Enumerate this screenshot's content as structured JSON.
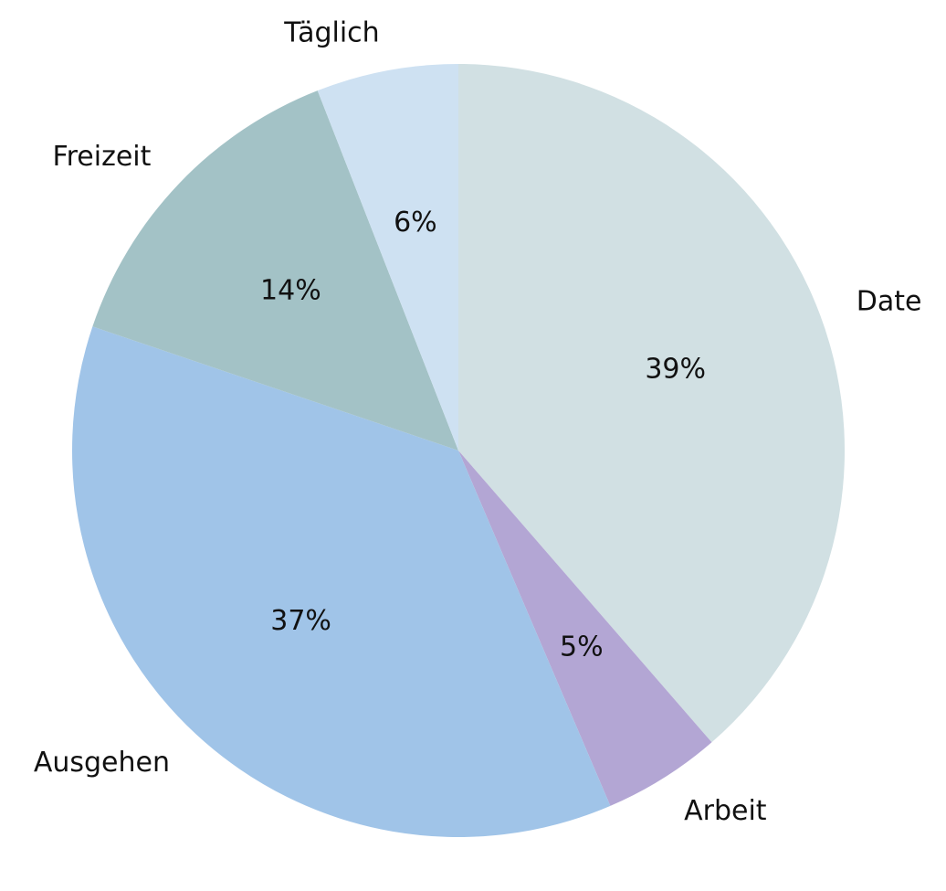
{
  "chart_data": {
    "type": "pie",
    "title": "",
    "start": "top",
    "direction": "clockwise",
    "categories": [
      "Date",
      "Arbeit",
      "Ausgehen",
      "Freizeit",
      "Täglich"
    ],
    "values": [
      39,
      5,
      37,
      14,
      6
    ],
    "value_labels": [
      "39%",
      "5%",
      "37%",
      "14%",
      "6%"
    ],
    "colors": [
      "#d1e0e3",
      "#b3a6d4",
      "#a0c4e8",
      "#a3c2c6",
      "#cee1f2"
    ],
    "legend": "none"
  }
}
